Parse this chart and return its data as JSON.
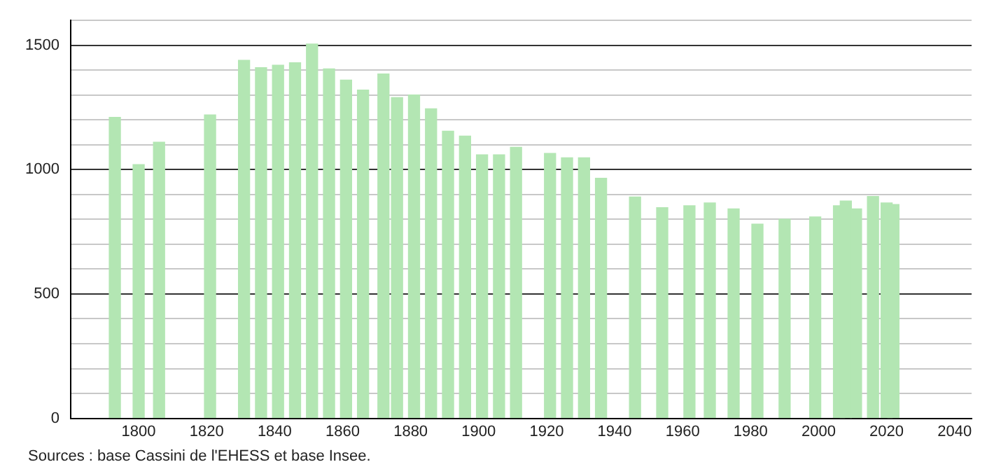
{
  "chart_data": {
    "type": "bar",
    "x": [
      1793,
      1800,
      1806,
      1821,
      1831,
      1836,
      1841,
      1846,
      1851,
      1856,
      1861,
      1866,
      1872,
      1876,
      1881,
      1886,
      1891,
      1896,
      1901,
      1906,
      1911,
      1921,
      1926,
      1931,
      1936,
      1946,
      1954,
      1962,
      1968,
      1975,
      1982,
      1990,
      1999,
      2006,
      2008,
      2011,
      2016,
      2020,
      2022
    ],
    "values": [
      1210,
      1020,
      1110,
      1220,
      1440,
      1410,
      1420,
      1430,
      1505,
      1405,
      1360,
      1320,
      1385,
      1290,
      1300,
      1245,
      1155,
      1135,
      1060,
      1060,
      1090,
      1065,
      1048,
      1048,
      965,
      890,
      847,
      855,
      866,
      842,
      781,
      801,
      810,
      855,
      874,
      842,
      892,
      866,
      860
    ],
    "color": "#b3e6b3",
    "xlim": [
      1780,
      2045
    ],
    "xticks": [
      1800,
      1820,
      1840,
      1860,
      1880,
      1900,
      1920,
      1940,
      1960,
      1980,
      2000,
      2020,
      2040
    ],
    "ylim": [
      0,
      1600
    ],
    "yticks": [
      0,
      {
        "value": 100,
        "label": null
      },
      {
        "value": 200,
        "label": null
      },
      {
        "value": 300,
        "label": null
      },
      {
        "value": 400,
        "label": null
      },
      500,
      {
        "value": 600,
        "label": null
      },
      {
        "value": 700,
        "label": null
      },
      {
        "value": 800,
        "label": null
      },
      {
        "value": 900,
        "label": null
      },
      1000,
      {
        "value": 1100,
        "label": null
      },
      {
        "value": 1200,
        "label": null
      },
      {
        "value": 1300,
        "label": null
      },
      {
        "value": 1400,
        "label": null
      },
      1500,
      {
        "value": 1600,
        "label": null
      }
    ],
    "grid": "y",
    "legend": false,
    "annotations": [
      "Sources : base Cassini de l'EHESS et base Insee."
    ]
  }
}
